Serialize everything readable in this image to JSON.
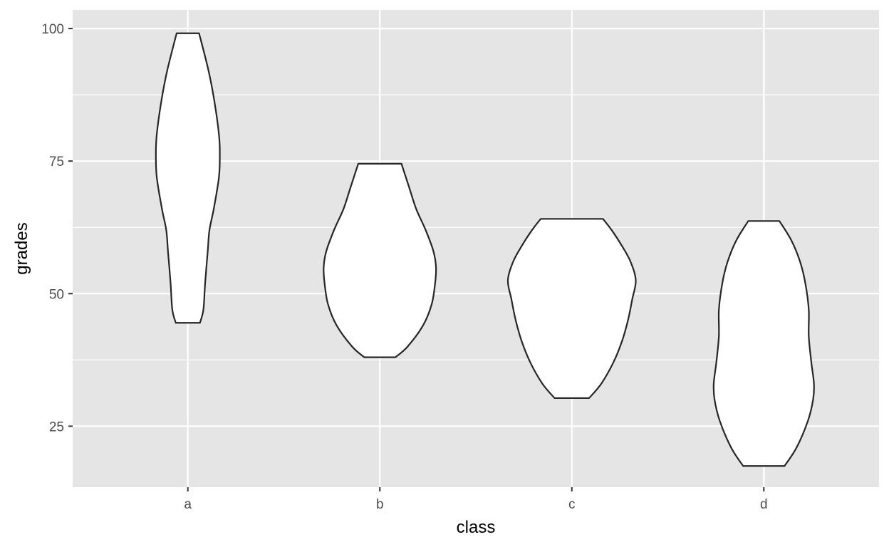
{
  "chart_data": {
    "type": "violin",
    "xlabel": "class",
    "ylabel": "grades",
    "categories": [
      "a",
      "b",
      "c",
      "d"
    ],
    "ylim": [
      13.5,
      103.5
    ],
    "yticks": [
      25,
      50,
      75,
      100
    ],
    "grid": true,
    "legend": "none",
    "colors": {
      "panel_background": "#e5e5e5",
      "grid_line": "#ffffff",
      "violin_fill": "#ffffff",
      "violin_stroke": "#262626",
      "tick_text": "#4d4d4d",
      "title_text": "#000000"
    },
    "violins": [
      {
        "category": "a",
        "min": 44.5,
        "max": 99.1,
        "density_profile": [
          {
            "y": 44.5,
            "w": 0.14
          },
          {
            "y": 47,
            "w": 0.18
          },
          {
            "y": 52,
            "w": 0.2
          },
          {
            "y": 58,
            "w": 0.23
          },
          {
            "y": 62,
            "w": 0.25
          },
          {
            "y": 66,
            "w": 0.3
          },
          {
            "y": 72,
            "w": 0.36
          },
          {
            "y": 76.5,
            "w": 0.37
          },
          {
            "y": 80,
            "w": 0.36
          },
          {
            "y": 86,
            "w": 0.31
          },
          {
            "y": 92,
            "w": 0.24
          },
          {
            "y": 99.1,
            "w": 0.13
          }
        ]
      },
      {
        "category": "b",
        "min": 38.0,
        "max": 74.5,
        "density_profile": [
          {
            "y": 38.0,
            "w": 0.18
          },
          {
            "y": 40,
            "w": 0.32
          },
          {
            "y": 44,
            "w": 0.5
          },
          {
            "y": 48,
            "w": 0.6
          },
          {
            "y": 52,
            "w": 0.64
          },
          {
            "y": 55,
            "w": 0.65
          },
          {
            "y": 58,
            "w": 0.62
          },
          {
            "y": 62,
            "w": 0.53
          },
          {
            "y": 66,
            "w": 0.42
          },
          {
            "y": 70,
            "w": 0.34
          },
          {
            "y": 74.5,
            "w": 0.25
          }
        ]
      },
      {
        "category": "c",
        "min": 30.3,
        "max": 64.1,
        "density_profile": [
          {
            "y": 30.3,
            "w": 0.2
          },
          {
            "y": 33,
            "w": 0.34
          },
          {
            "y": 37,
            "w": 0.48
          },
          {
            "y": 41,
            "w": 0.58
          },
          {
            "y": 45,
            "w": 0.65
          },
          {
            "y": 49,
            "w": 0.7
          },
          {
            "y": 52.5,
            "w": 0.74
          },
          {
            "y": 56,
            "w": 0.68
          },
          {
            "y": 59,
            "w": 0.58
          },
          {
            "y": 62,
            "w": 0.46
          },
          {
            "y": 64.1,
            "w": 0.36
          }
        ]
      },
      {
        "category": "d",
        "min": 17.5,
        "max": 63.7,
        "density_profile": [
          {
            "y": 17.5,
            "w": 0.24
          },
          {
            "y": 21,
            "w": 0.38
          },
          {
            "y": 26,
            "w": 0.51
          },
          {
            "y": 30,
            "w": 0.57
          },
          {
            "y": 33,
            "w": 0.58
          },
          {
            "y": 37,
            "w": 0.55
          },
          {
            "y": 42,
            "w": 0.52
          },
          {
            "y": 47,
            "w": 0.52
          },
          {
            "y": 52,
            "w": 0.48
          },
          {
            "y": 56,
            "w": 0.42
          },
          {
            "y": 60,
            "w": 0.32
          },
          {
            "y": 63.7,
            "w": 0.18
          }
        ]
      }
    ]
  }
}
